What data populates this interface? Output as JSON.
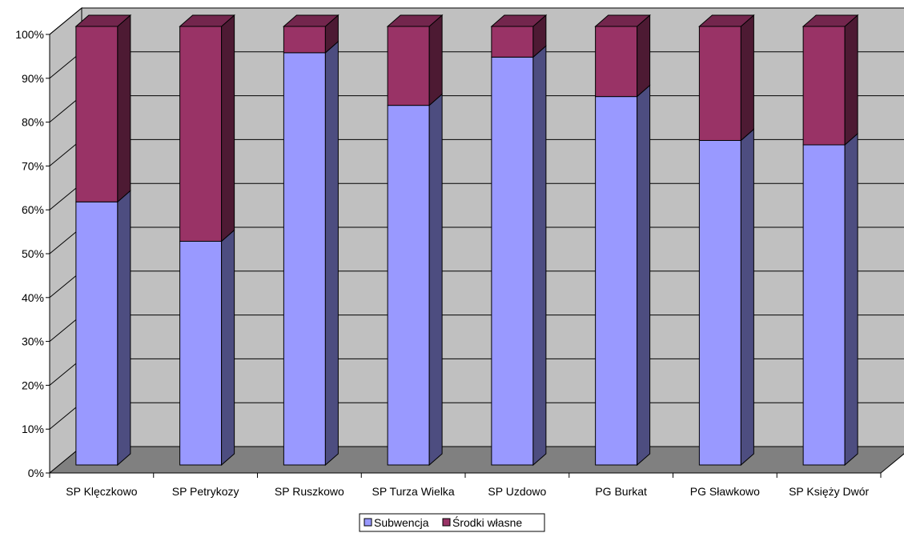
{
  "chart_data": {
    "type": "bar",
    "stacked": true,
    "percent_stacked": true,
    "three_d": true,
    "categories": [
      "SP Klęczkowo",
      "SP Petrykozy",
      "SP Ruszkowo",
      "SP Turza Wielka",
      "SP Uzdowo",
      "PG Burkat",
      "PG Sławkowo",
      "SP Księży Dwór"
    ],
    "series": [
      {
        "name": "Subwencja",
        "values": [
          60,
          51,
          94,
          82,
          93,
          84,
          74,
          73
        ],
        "color": "#9999ff"
      },
      {
        "name": "Środki własne",
        "values": [
          40,
          49,
          6,
          18,
          7,
          16,
          26,
          27
        ],
        "color": "#993366"
      }
    ],
    "y_ticks": [
      "0%",
      "10%",
      "20%",
      "30%",
      "40%",
      "50%",
      "60%",
      "70%",
      "80%",
      "90%",
      "100%"
    ],
    "ylim": [
      0,
      100
    ],
    "grid": true,
    "legend_position": "bottom",
    "colors": {
      "wall": "#c0c0c0",
      "floor": "#808080",
      "gridline": "#000000"
    }
  }
}
